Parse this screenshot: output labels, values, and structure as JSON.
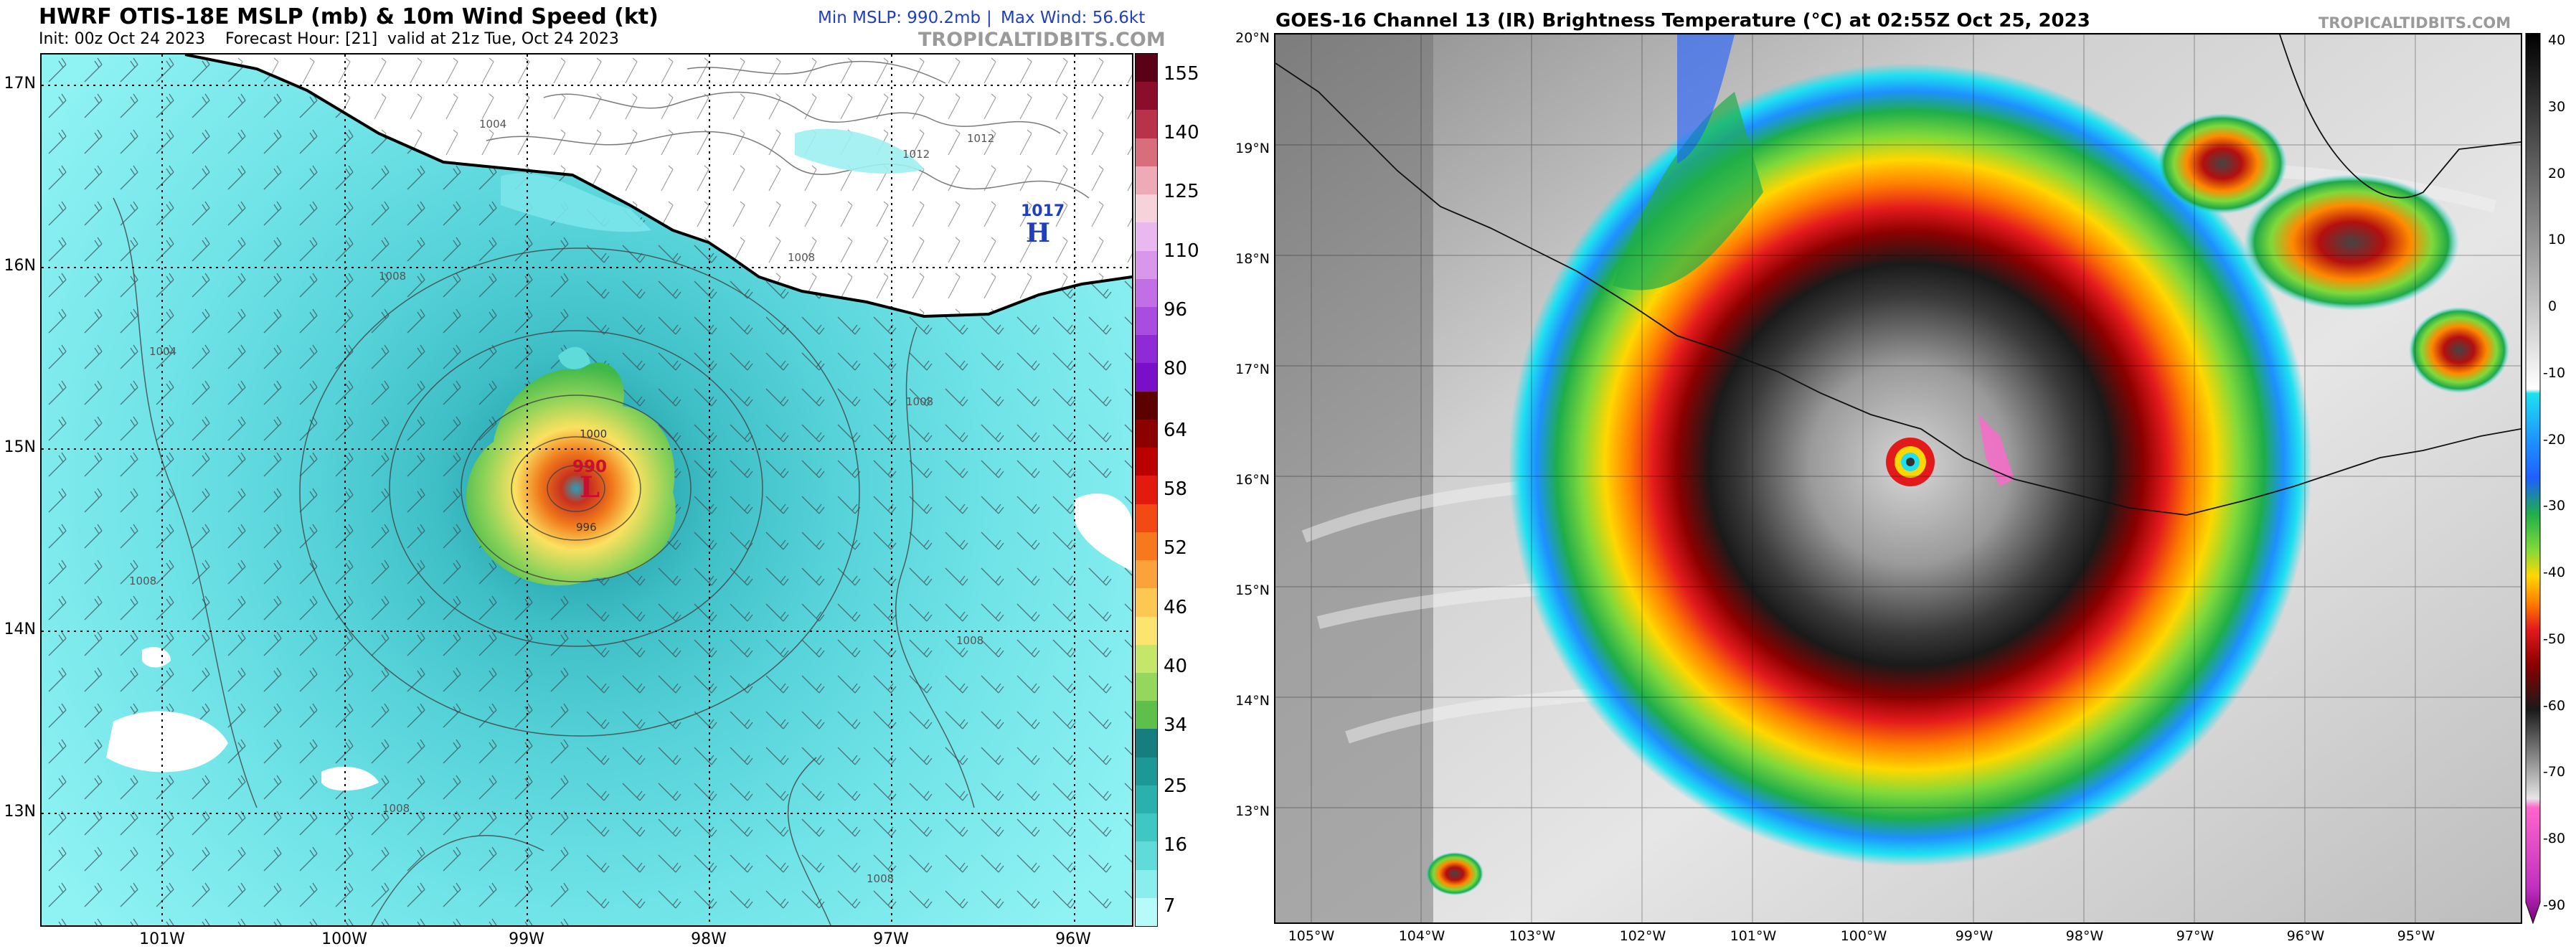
{
  "left_panel": {
    "title": "HWRF OTIS-18E MSLP (mb) & 10m Wind Speed (kt)",
    "subtitle_init": "Init: 00z Oct 24 2023",
    "subtitle_fh": "Forecast Hour: [21]",
    "subtitle_valid": "valid at 21z Tue, Oct 24 2023",
    "min_mslp": "Min MSLP: 990.2mb",
    "separator": "|",
    "max_wind": "Max Wind: 56.6kt",
    "watermark": "TROPICALTIDBITS.COM",
    "low_pressure_value": "990",
    "low_symbol": "L",
    "high_pressure_value": "1017",
    "high_symbol": "H",
    "isobar_labels": [
      "1012",
      "1008",
      "1004",
      "1008",
      "1004",
      "1000",
      "996",
      "1008",
      "1008",
      "1008",
      "1008",
      "1008",
      "1012"
    ],
    "lat_labels": [
      "17N",
      "16N",
      "15N",
      "14N",
      "13N"
    ],
    "lon_labels": [
      "101W",
      "100W",
      "99W",
      "98W",
      "97W",
      "96W"
    ]
  },
  "right_panel": {
    "title": "GOES-16 Channel 13 (IR) Brightness Temperature (°C) at 02:55Z Oct 25, 2023",
    "watermark": "TROPICALTIDBITS.COM",
    "lat_labels": [
      "20°N",
      "19°N",
      "18°N",
      "17°N",
      "16°N",
      "15°N",
      "14°N",
      "13°N"
    ],
    "lon_labels": [
      "105°W",
      "104°W",
      "103°W",
      "102°W",
      "101°W",
      "100°W",
      "99°W",
      "98°W",
      "97°W",
      "96°W",
      "95°W"
    ]
  },
  "wind_colorbar": {
    "labels": [
      "155",
      "140",
      "125",
      "110",
      "96",
      "80",
      "64",
      "58",
      "52",
      "46",
      "40",
      "34",
      "25",
      "16",
      "7"
    ],
    "colors": [
      "#5a0017",
      "#8a0d2c",
      "#b8324a",
      "#d86d7c",
      "#eeaab7",
      "#f6d3da",
      "#e8b8ee",
      "#d897ea",
      "#c26fe6",
      "#a94de0",
      "#8e2ad6",
      "#7a0fc9",
      "#5c0000",
      "#8c0000",
      "#bb0000",
      "#e31b0f",
      "#f24a12",
      "#f7791e",
      "#fba33a",
      "#fdc851",
      "#fbe56e",
      "#c6e66a",
      "#95d65c",
      "#5cc04a",
      "#167e7e",
      "#1c9897",
      "#2ab0ad",
      "#3fc7c4",
      "#5fdcd9",
      "#8aeeec",
      "#b6fbfa"
    ]
  },
  "ir_colorbar": {
    "labels": [
      "40",
      "30",
      "20",
      "10",
      "0",
      "-10",
      "-20",
      "-30",
      "-40",
      "-50",
      "-60",
      "-70",
      "-80",
      "-90"
    ]
  },
  "colors": {
    "ocean_base": "#5fd7dc",
    "land": "#ffffff",
    "coast": "#000000",
    "title_blue": "#1f3fbf",
    "watermark_gray": "#9a9a9a"
  }
}
